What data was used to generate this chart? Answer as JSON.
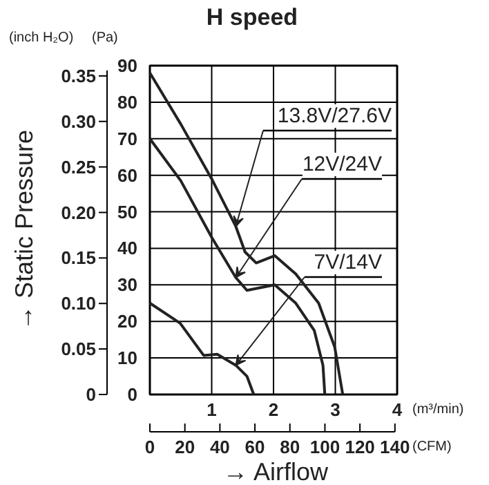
{
  "chart_data": {
    "type": "line",
    "title": "H speed",
    "xlabel": "→ Airflow",
    "ylabel": "→ Static Pressure",
    "annotations": [
      "(inch H₂O)",
      "(Pa)",
      "(m³/min)",
      "(CFM)"
    ],
    "xlim": [
      0,
      4
    ],
    "xticks": [
      1,
      2,
      3,
      4
    ],
    "ylim": [
      0,
      0.3613
    ],
    "yticks": [
      0,
      0.05,
      {
        "value": 0.1,
        "label": "0.10"
      },
      0.15,
      {
        "value": 0.2,
        "label": "0.20"
      },
      0.25,
      {
        "value": 0.3,
        "label": "0.30"
      },
      0.35
    ],
    "y2lim": [
      0,
      90
    ],
    "y2ticks": [
      0,
      10,
      20,
      30,
      40,
      50,
      60,
      70,
      80,
      90
    ],
    "x2lim": [
      0,
      141.26
    ],
    "x2ticks": [
      0,
      20,
      40,
      60,
      80,
      100,
      120,
      140
    ],
    "grid": true,
    "legend": false,
    "marker": "none",
    "line_style": "solid",
    "series": [
      {
        "name": "13.8V/27.6V",
        "color": "#222222",
        "axis": "y2",
        "x": [
          0,
          0.5,
          1,
          1.39,
          1.54,
          1.72,
          2.02,
          2.36,
          2.73,
          2.99,
          3.12
        ],
        "values": [
          88,
          74,
          59,
          46,
          39,
          36,
          38,
          33,
          25,
          13,
          0
        ]
      },
      {
        "name": "12V/24V",
        "color": "#222222",
        "axis": "y2",
        "x": [
          0,
          0.5,
          1,
          1.39,
          1.57,
          2.02,
          2.36,
          2.66,
          2.8,
          2.83
        ],
        "values": [
          70,
          58.5,
          43,
          32,
          28.5,
          30,
          25,
          17.5,
          8,
          0
        ]
      },
      {
        "name": "7V/14V",
        "color": "#222222",
        "axis": "y2",
        "x": [
          0,
          0.49,
          0.87,
          1.09,
          1.39,
          1.57,
          1.68
        ],
        "values": [
          25,
          19.5,
          10.7,
          11,
          8,
          5,
          0
        ]
      }
    ]
  }
}
